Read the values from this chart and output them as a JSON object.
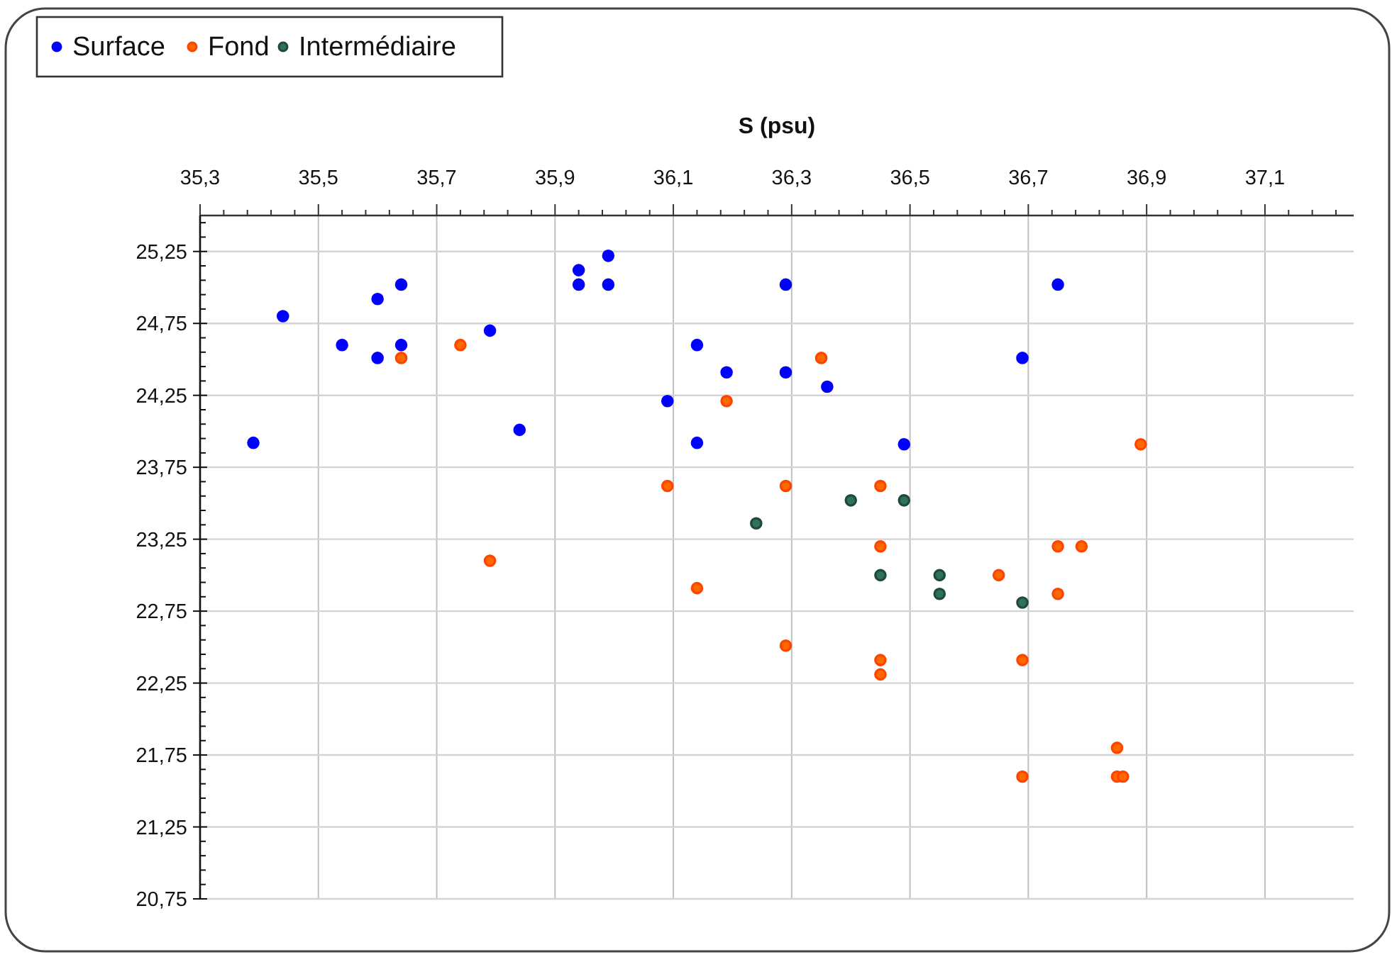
{
  "chart_data": {
    "type": "scatter",
    "xlabel": "S (psu)",
    "xlim": [
      35.3,
      37.25
    ],
    "ylim": [
      20.75,
      25.5
    ],
    "xticks": [
      {
        "value": 35.3,
        "label": "35,3"
      },
      {
        "value": 35.34,
        "label": null
      },
      {
        "value": 35.38,
        "label": null
      },
      {
        "value": 35.42,
        "label": null
      },
      {
        "value": 35.46,
        "label": null
      },
      {
        "value": 35.5,
        "label": "35,5"
      },
      {
        "value": 35.54,
        "label": null
      },
      {
        "value": 35.58,
        "label": null
      },
      {
        "value": 35.62,
        "label": null
      },
      {
        "value": 35.66,
        "label": null
      },
      {
        "value": 35.7,
        "label": "35,7"
      },
      {
        "value": 35.74,
        "label": null
      },
      {
        "value": 35.78,
        "label": null
      },
      {
        "value": 35.82,
        "label": null
      },
      {
        "value": 35.86,
        "label": null
      },
      {
        "value": 35.9,
        "label": "35,9"
      },
      {
        "value": 35.94,
        "label": null
      },
      {
        "value": 35.98,
        "label": null
      },
      {
        "value": 36.02,
        "label": null
      },
      {
        "value": 36.06,
        "label": null
      },
      {
        "value": 36.1,
        "label": "36,1"
      },
      {
        "value": 36.14,
        "label": null
      },
      {
        "value": 36.18,
        "label": null
      },
      {
        "value": 36.22,
        "label": null
      },
      {
        "value": 36.26,
        "label": null
      },
      {
        "value": 36.3,
        "label": "36,3"
      },
      {
        "value": 36.34,
        "label": null
      },
      {
        "value": 36.38,
        "label": null
      },
      {
        "value": 36.42,
        "label": null
      },
      {
        "value": 36.46,
        "label": null
      },
      {
        "value": 36.5,
        "label": "36,5"
      },
      {
        "value": 36.54,
        "label": null
      },
      {
        "value": 36.58,
        "label": null
      },
      {
        "value": 36.62,
        "label": null
      },
      {
        "value": 36.66,
        "label": null
      },
      {
        "value": 36.7,
        "label": "36,7"
      },
      {
        "value": 36.74,
        "label": null
      },
      {
        "value": 36.78,
        "label": null
      },
      {
        "value": 36.82,
        "label": null
      },
      {
        "value": 36.86,
        "label": null
      },
      {
        "value": 36.9,
        "label": "36,9"
      },
      {
        "value": 36.94,
        "label": null
      },
      {
        "value": 36.98,
        "label": null
      },
      {
        "value": 37.02,
        "label": null
      },
      {
        "value": 37.06,
        "label": null
      },
      {
        "value": 37.1,
        "label": "37,1"
      },
      {
        "value": 37.14,
        "label": null
      },
      {
        "value": 37.18,
        "label": null
      },
      {
        "value": 37.22,
        "label": null
      }
    ],
    "yticks": [
      {
        "value": 20.75,
        "label": "20,75"
      },
      {
        "value": 20.85,
        "label": null
      },
      {
        "value": 20.95,
        "label": null
      },
      {
        "value": 21.05,
        "label": null
      },
      {
        "value": 21.15,
        "label": null
      },
      {
        "value": 21.25,
        "label": "21,25"
      },
      {
        "value": 21.35,
        "label": null
      },
      {
        "value": 21.45,
        "label": null
      },
      {
        "value": 21.55,
        "label": null
      },
      {
        "value": 21.65,
        "label": null
      },
      {
        "value": 21.75,
        "label": "21,75"
      },
      {
        "value": 21.85,
        "label": null
      },
      {
        "value": 21.95,
        "label": null
      },
      {
        "value": 22.05,
        "label": null
      },
      {
        "value": 22.15,
        "label": null
      },
      {
        "value": 22.25,
        "label": "22,25"
      },
      {
        "value": 22.35,
        "label": null
      },
      {
        "value": 22.45,
        "label": null
      },
      {
        "value": 22.55,
        "label": null
      },
      {
        "value": 22.65,
        "label": null
      },
      {
        "value": 22.75,
        "label": "22,75"
      },
      {
        "value": 22.85,
        "label": null
      },
      {
        "value": 22.95,
        "label": null
      },
      {
        "value": 23.05,
        "label": null
      },
      {
        "value": 23.15,
        "label": null
      },
      {
        "value": 23.25,
        "label": "23,25"
      },
      {
        "value": 23.35,
        "label": null
      },
      {
        "value": 23.45,
        "label": null
      },
      {
        "value": 23.55,
        "label": null
      },
      {
        "value": 23.65,
        "label": null
      },
      {
        "value": 23.75,
        "label": "23,75"
      },
      {
        "value": 23.85,
        "label": null
      },
      {
        "value": 23.95,
        "label": null
      },
      {
        "value": 24.05,
        "label": null
      },
      {
        "value": 24.15,
        "label": null
      },
      {
        "value": 24.25,
        "label": "24,25"
      },
      {
        "value": 24.35,
        "label": null
      },
      {
        "value": 24.45,
        "label": null
      },
      {
        "value": 24.55,
        "label": null
      },
      {
        "value": 24.65,
        "label": null
      },
      {
        "value": 24.75,
        "label": "24,75"
      },
      {
        "value": 24.85,
        "label": null
      },
      {
        "value": 24.95,
        "label": null
      },
      {
        "value": 25.05,
        "label": null
      },
      {
        "value": 25.15,
        "label": null
      },
      {
        "value": 25.25,
        "label": "25,25"
      },
      {
        "value": 25.35,
        "label": null
      },
      {
        "value": 25.45,
        "label": null
      }
    ],
    "grid": true,
    "legend": "top left",
    "marker": "circle",
    "series": [
      {
        "name": "Surface",
        "color": "#0000ff",
        "x": [
          35.39,
          35.44,
          35.54,
          35.6,
          35.6,
          35.64,
          35.64,
          35.79,
          35.84,
          35.94,
          35.94,
          35.99,
          35.99,
          36.09,
          36.14,
          36.14,
          36.19,
          36.29,
          36.29,
          36.36,
          36.49,
          36.69,
          36.75
        ],
        "values": [
          23.92,
          24.8,
          24.6,
          24.92,
          24.51,
          25.02,
          24.6,
          24.7,
          24.01,
          25.12,
          25.02,
          25.22,
          25.02,
          24.21,
          24.6,
          23.92,
          24.41,
          25.02,
          24.41,
          24.31,
          23.91,
          24.51,
          25.02
        ]
      },
      {
        "name": "Fond",
        "color": "#ff4400",
        "x": [
          35.64,
          35.74,
          36.19,
          36.35,
          36.89,
          35.79,
          36.09,
          36.14,
          36.29,
          36.29,
          36.45,
          36.45,
          36.75,
          36.79,
          36.65,
          36.75,
          36.45,
          36.45,
          36.69,
          36.85,
          36.85,
          36.86,
          36.69
        ],
        "values": [
          24.51,
          24.6,
          24.21,
          24.51,
          23.91,
          23.1,
          23.62,
          22.91,
          23.62,
          22.51,
          23.62,
          23.2,
          23.2,
          23.2,
          23.0,
          22.87,
          22.41,
          22.31,
          22.41,
          21.8,
          21.6,
          21.6,
          21.6
        ]
      },
      {
        "name": "Intermédiaire",
        "color": "#1f4a3a",
        "x": [
          36.24,
          36.4,
          36.49,
          36.45,
          36.55,
          36.55,
          36.69
        ],
        "values": [
          23.36,
          23.52,
          23.52,
          23.0,
          23.0,
          22.87,
          22.81
        ]
      }
    ]
  }
}
